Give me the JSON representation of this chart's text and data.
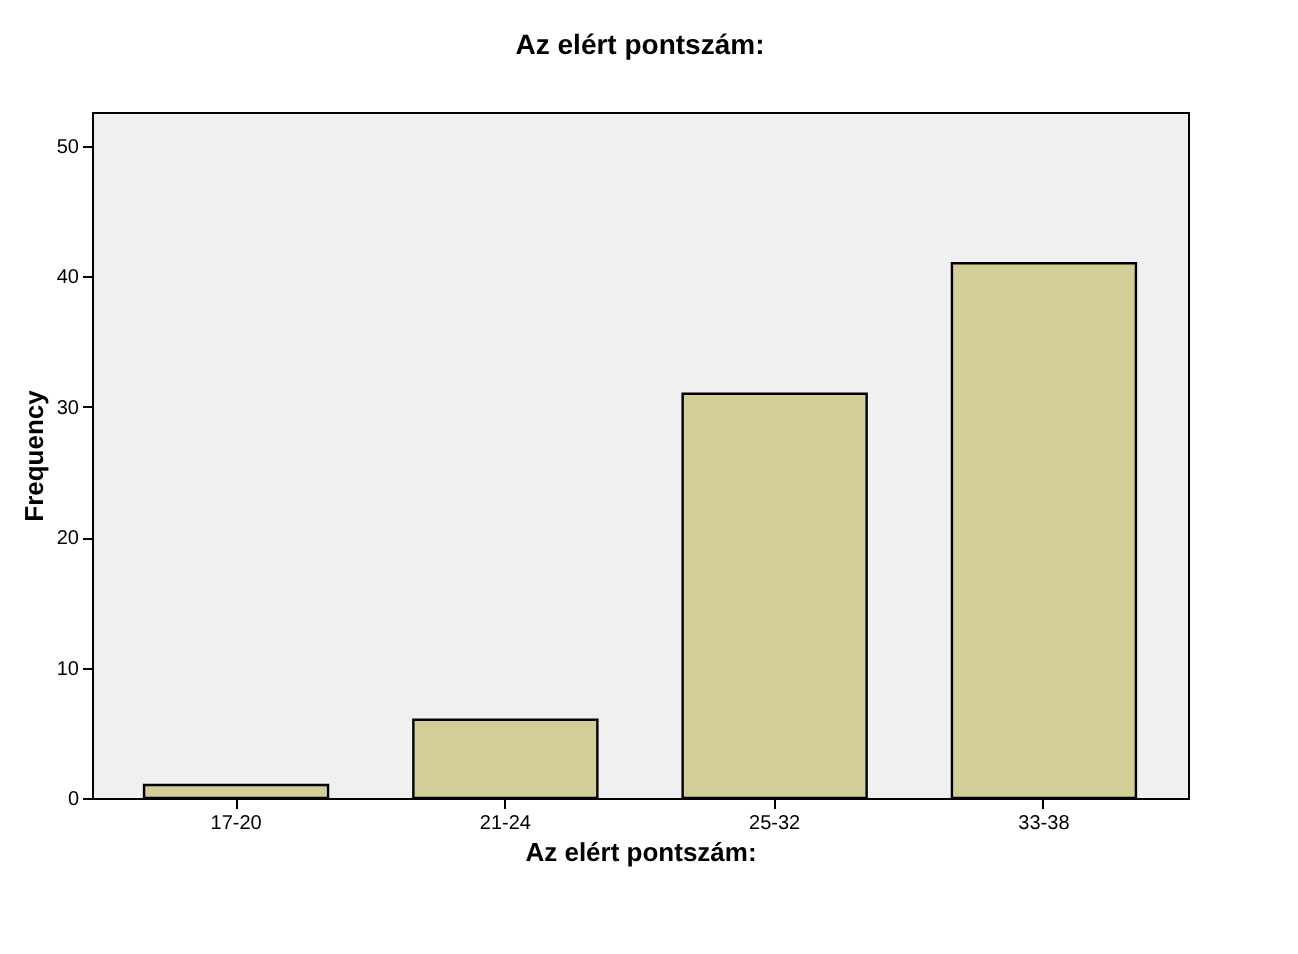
{
  "chart_data": {
    "type": "bar",
    "title": "Az elért pontszám:",
    "xlabel": "Az elért pontszám:",
    "ylabel": "Frequency",
    "categories": [
      "17-20",
      "21-24",
      "25-32",
      "33-38"
    ],
    "values": [
      1,
      6,
      31,
      41
    ],
    "color": "#d3ce97",
    "ylim": [
      0,
      52.6
    ],
    "yticks": [
      0,
      10,
      20,
      30,
      40,
      50
    ],
    "grid": false
  }
}
